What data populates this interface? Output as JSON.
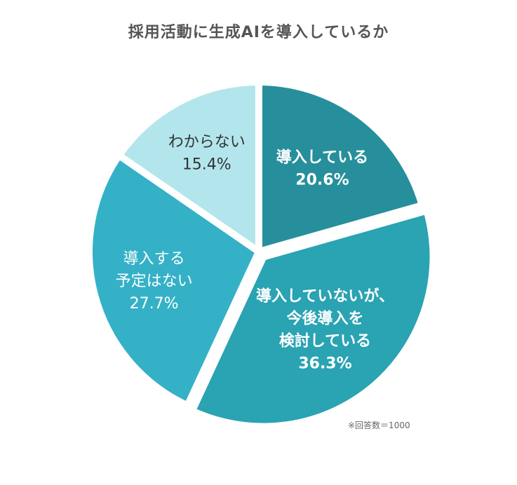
{
  "title": "採用活動に生成AIを導入しているか",
  "note": "※回答数＝1000",
  "chart_data": {
    "type": "pie",
    "title": "採用活動に生成AIを導入しているか",
    "slices": [
      {
        "name": "導入している",
        "lines": [
          "導入している"
        ],
        "value": 20.6,
        "value_label": "20.6%",
        "color": "#268f9b",
        "text_color": "#ffffff",
        "bold": true,
        "exploded": false
      },
      {
        "name": "導入していないが、今後導入を検討している",
        "lines": [
          "導入していないが、",
          "今後導入を",
          "検討している"
        ],
        "value": 36.3,
        "value_label": "36.3%",
        "color": "#2aa3b2",
        "text_color": "#ffffff",
        "bold": true,
        "exploded": true
      },
      {
        "name": "導入する予定はない",
        "lines": [
          "導入する",
          "予定はない"
        ],
        "value": 27.7,
        "value_label": "27.7%",
        "color": "#34b1c7",
        "text_color": "#ffffff",
        "bold": false,
        "exploded": false
      },
      {
        "name": "わからない",
        "lines": [
          "わからない"
        ],
        "value": 15.4,
        "value_label": "15.4%",
        "color": "#b3e6ec",
        "text_color": "#333333",
        "bold": false,
        "exploded": false
      }
    ],
    "start": "12 o'clock",
    "direction": "clockwise",
    "legend": "none"
  }
}
